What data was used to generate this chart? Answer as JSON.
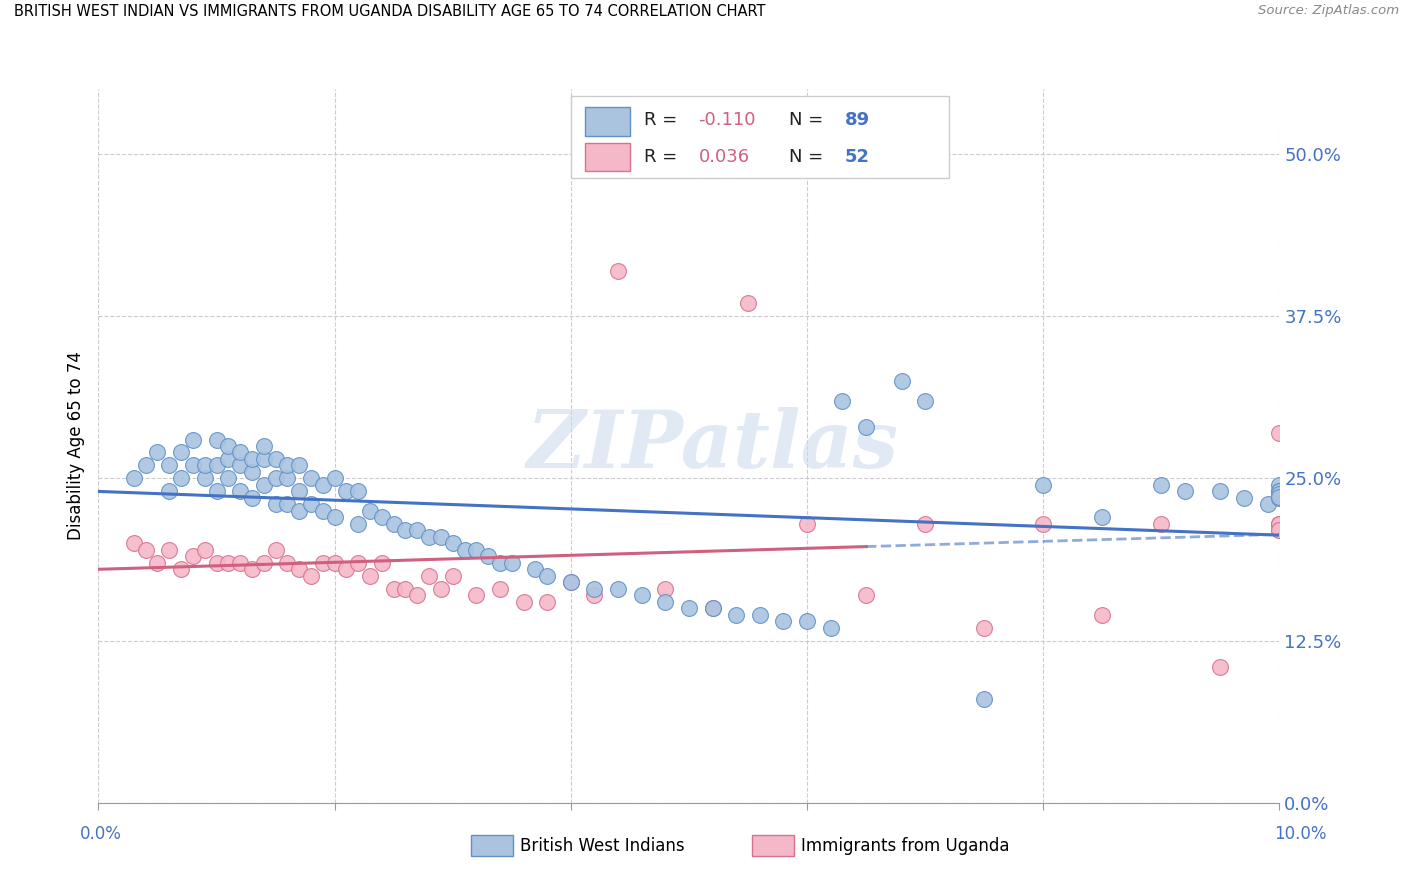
{
  "title": "BRITISH WEST INDIAN VS IMMIGRANTS FROM UGANDA DISABILITY AGE 65 TO 74 CORRELATION CHART",
  "source": "Source: ZipAtlas.com",
  "ylabel": "Disability Age 65 to 74",
  "ylabel_ticks": [
    "0.0%",
    "12.5%",
    "25.0%",
    "37.5%",
    "50.0%"
  ],
  "ylabel_tick_vals": [
    0.0,
    0.125,
    0.25,
    0.375,
    0.5
  ],
  "xmin": 0.0,
  "xmax": 0.1,
  "ymin": 0.0,
  "ymax": 0.55,
  "legend_label_blue": "British West Indians",
  "legend_label_pink": "Immigrants from Uganda",
  "color_blue_fill": "#aac4e0",
  "color_blue_edge": "#6090c8",
  "color_blue_line": "#4472c4",
  "color_pink_fill": "#f4b8c8",
  "color_pink_edge": "#d87090",
  "color_pink_line": "#d06080",
  "color_blue_text": "#4472c4",
  "color_pink_text": "#d06080",
  "watermark": "ZIPatlas",
  "blue_x": [
    0.003,
    0.004,
    0.005,
    0.006,
    0.006,
    0.007,
    0.007,
    0.008,
    0.008,
    0.009,
    0.009,
    0.01,
    0.01,
    0.01,
    0.011,
    0.011,
    0.011,
    0.012,
    0.012,
    0.012,
    0.013,
    0.013,
    0.013,
    0.014,
    0.014,
    0.014,
    0.015,
    0.015,
    0.015,
    0.016,
    0.016,
    0.016,
    0.017,
    0.017,
    0.017,
    0.018,
    0.018,
    0.019,
    0.019,
    0.02,
    0.02,
    0.021,
    0.022,
    0.022,
    0.023,
    0.024,
    0.025,
    0.026,
    0.027,
    0.028,
    0.029,
    0.03,
    0.031,
    0.032,
    0.033,
    0.034,
    0.035,
    0.037,
    0.038,
    0.04,
    0.042,
    0.044,
    0.046,
    0.048,
    0.05,
    0.052,
    0.054,
    0.056,
    0.058,
    0.06,
    0.062,
    0.063,
    0.065,
    0.068,
    0.07,
    0.075,
    0.08,
    0.085,
    0.09,
    0.092,
    0.095,
    0.097,
    0.099,
    0.1,
    0.1,
    0.1,
    0.1,
    0.1,
    0.1
  ],
  "blue_y": [
    0.25,
    0.26,
    0.27,
    0.24,
    0.26,
    0.25,
    0.27,
    0.26,
    0.28,
    0.25,
    0.26,
    0.24,
    0.26,
    0.28,
    0.25,
    0.265,
    0.275,
    0.24,
    0.26,
    0.27,
    0.235,
    0.255,
    0.265,
    0.245,
    0.265,
    0.275,
    0.23,
    0.25,
    0.265,
    0.23,
    0.25,
    0.26,
    0.225,
    0.24,
    0.26,
    0.23,
    0.25,
    0.225,
    0.245,
    0.22,
    0.25,
    0.24,
    0.215,
    0.24,
    0.225,
    0.22,
    0.215,
    0.21,
    0.21,
    0.205,
    0.205,
    0.2,
    0.195,
    0.195,
    0.19,
    0.185,
    0.185,
    0.18,
    0.175,
    0.17,
    0.165,
    0.165,
    0.16,
    0.155,
    0.15,
    0.15,
    0.145,
    0.145,
    0.14,
    0.14,
    0.135,
    0.31,
    0.29,
    0.325,
    0.31,
    0.08,
    0.245,
    0.22,
    0.245,
    0.24,
    0.24,
    0.235,
    0.23,
    0.245,
    0.24,
    0.235,
    0.24,
    0.238,
    0.236
  ],
  "pink_x": [
    0.003,
    0.004,
    0.005,
    0.006,
    0.007,
    0.008,
    0.009,
    0.01,
    0.011,
    0.012,
    0.013,
    0.014,
    0.015,
    0.016,
    0.017,
    0.018,
    0.019,
    0.02,
    0.021,
    0.022,
    0.023,
    0.024,
    0.025,
    0.026,
    0.027,
    0.028,
    0.029,
    0.03,
    0.032,
    0.034,
    0.036,
    0.038,
    0.04,
    0.042,
    0.044,
    0.048,
    0.052,
    0.055,
    0.06,
    0.065,
    0.07,
    0.075,
    0.08,
    0.085,
    0.09,
    0.095,
    0.1,
    0.1,
    0.1,
    0.1,
    0.1,
    0.1
  ],
  "pink_y": [
    0.2,
    0.195,
    0.185,
    0.195,
    0.18,
    0.19,
    0.195,
    0.185,
    0.185,
    0.185,
    0.18,
    0.185,
    0.195,
    0.185,
    0.18,
    0.175,
    0.185,
    0.185,
    0.18,
    0.185,
    0.175,
    0.185,
    0.165,
    0.165,
    0.16,
    0.175,
    0.165,
    0.175,
    0.16,
    0.165,
    0.155,
    0.155,
    0.17,
    0.16,
    0.41,
    0.165,
    0.15,
    0.385,
    0.215,
    0.16,
    0.215,
    0.135,
    0.215,
    0.145,
    0.215,
    0.105,
    0.285,
    0.215,
    0.215,
    0.21,
    0.215,
    0.21
  ]
}
